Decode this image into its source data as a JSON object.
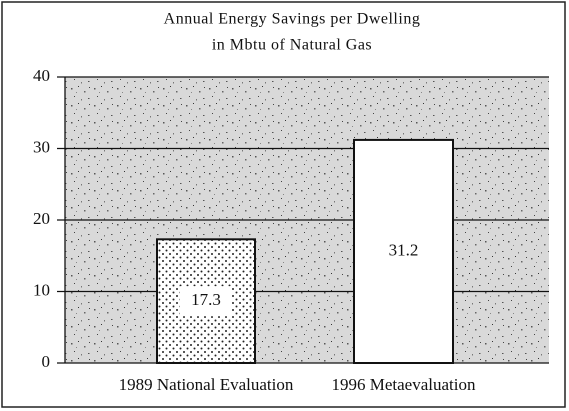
{
  "chart_data": {
    "type": "bar",
    "title": "Annual Energy Savings per Dwelling",
    "subtitle": "in Mbtu of Natural Gas",
    "categories": [
      "1989 National Evaluation",
      "1996 Metaevaluation"
    ],
    "values": [
      17.3,
      31.2
    ],
    "ylim": [
      0,
      40
    ],
    "yticks": [
      0,
      10,
      20,
      30,
      40
    ],
    "grid": true
  }
}
